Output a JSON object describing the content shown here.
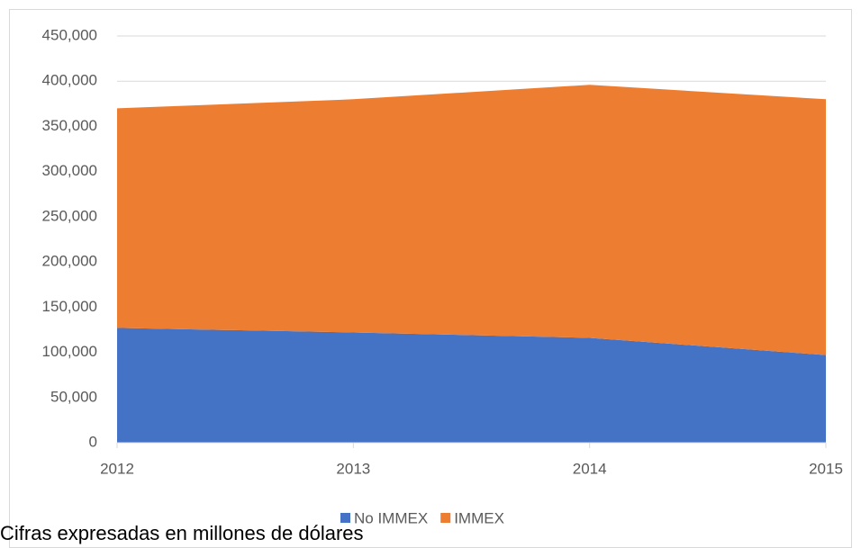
{
  "chart_data": {
    "type": "stacked_area",
    "x": [
      2012,
      2013,
      2014,
      2015
    ],
    "xlim": [
      2012,
      2015
    ],
    "xticks": [
      2012,
      2013,
      2014,
      2015
    ],
    "series": [
      {
        "name": "No IMMEX",
        "color": "#4472c4",
        "values": [
          127000,
          122000,
          116000,
          97000
        ]
      },
      {
        "name": "IMMEX",
        "color": "#ed7d31",
        "values": [
          243000,
          258000,
          280000,
          283000
        ]
      }
    ],
    "ylim": [
      0,
      450000
    ],
    "yticks": [
      0,
      {
        "value": 50000,
        "label": "50,000"
      },
      {
        "value": 100000,
        "label": "100,000"
      },
      {
        "value": 150000,
        "label": "150,000"
      },
      {
        "value": 200000,
        "label": "200,000"
      },
      {
        "value": 250000,
        "label": "250,000"
      },
      {
        "value": 300000,
        "label": "300,000"
      },
      {
        "value": 350000,
        "label": "350,000"
      },
      {
        "value": 400000,
        "label": "400,000"
      },
      {
        "value": 450000,
        "label": "450,000"
      }
    ],
    "grid": true,
    "legend": "bottom",
    "caption": "Cifras expresadas en millones de dólares"
  }
}
